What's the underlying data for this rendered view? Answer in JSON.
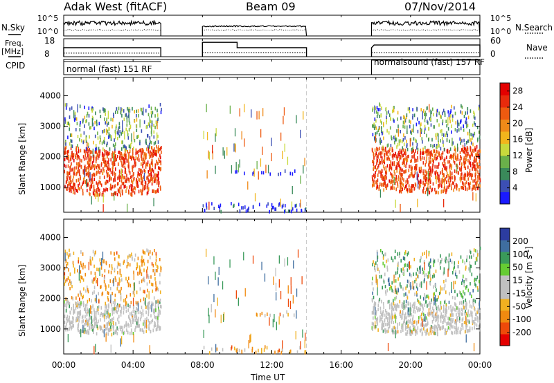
{
  "header": {
    "station": "Adak West (fitACF)",
    "beam": "Beam 09",
    "date": "07/Nov/2014"
  },
  "side_labels": {
    "nsky": "N.Sky",
    "nsky_ticks": [
      "10^5",
      "10^0"
    ],
    "nsearch": "N.Search",
    "nsearch_ticks": [
      "10^5",
      "10^0"
    ],
    "freq": "Freq.",
    "freq_unit": "[MHz]",
    "freq_ticks": [
      "18",
      "8"
    ],
    "nave": "Nave",
    "nave_ticks": [
      "60",
      "0"
    ],
    "cpid": "CPID"
  },
  "cpid_segments": [
    {
      "label": "normal (fast) 151 RF",
      "start_h": 0.0,
      "end_h": 5.6
    },
    {
      "label": "normalsound (fast) 157 RF",
      "start_h": 17.75,
      "end_h": 24.0
    }
  ],
  "operating_intervals_h": [
    [
      0.0,
      5.6
    ],
    [
      8.0,
      14.0
    ],
    [
      17.75,
      24.0
    ]
  ],
  "time_axis": {
    "label": "Time UT",
    "ticks": [
      "00:00",
      "04:00",
      "08:00",
      "12:00",
      "16:00",
      "20:00",
      "00:00"
    ],
    "range_h": [
      0,
      24
    ]
  },
  "range_axis": {
    "label": "Slant Range [km]",
    "ticks": [
      1000,
      2000,
      3000,
      4000
    ],
    "range_km": [
      180,
      4600
    ]
  },
  "power_scale": {
    "label": "Power [dB]",
    "ticks": [
      4,
      8,
      12,
      16,
      20,
      24,
      28
    ],
    "range": [
      0,
      30
    ],
    "colors": [
      "#1a1aff",
      "#3c4fb4",
      "#3a8a5a",
      "#6ab04a",
      "#c8d93c",
      "#f2b51c",
      "#f08a18",
      "#ee5a10",
      "#e82a0c",
      "#e40000"
    ]
  },
  "velocity_scale": {
    "label": "Velocity [m s^-1]",
    "ticks": [
      200,
      100,
      50,
      15,
      -15,
      -50,
      -100,
      -200
    ],
    "colors": [
      "#2c3ca0",
      "#3f6ea0",
      "#3a9a5a",
      "#66cc33",
      "#c0c0c0",
      "#c0c0c0",
      "#f0b020",
      "#f08a10",
      "#ee4a0a",
      "#e40000"
    ]
  },
  "chart_data": [
    {
      "type": "line",
      "title": "N.Sky / N.Search",
      "x_range_h": [
        0,
        24
      ],
      "series": [
        {
          "name": "N.Sky",
          "segments_h": [
            [
              0.0,
              5.6
            ],
            [
              8.0,
              14.0
            ],
            [
              17.75,
              24.0
            ]
          ],
          "level": "10^2 to 10^3"
        },
        {
          "name": "N.Search",
          "segments_h": [
            [
              0.0,
              5.6
            ],
            [
              8.0,
              14.0
            ],
            [
              17.75,
              24.0
            ]
          ],
          "level": "~10^1"
        }
      ]
    },
    {
      "type": "line",
      "title": "Freq. / Nave",
      "x_range_h": [
        0,
        24
      ],
      "series": [
        {
          "name": "Freq. [MHz]",
          "points": [
            [
              0.0,
              13
            ],
            [
              5.6,
              13
            ],
            [
              8.0,
              16
            ],
            [
              10.0,
              16
            ],
            [
              10.0,
              13
            ],
            [
              14.0,
              13
            ],
            [
              17.75,
              13
            ],
            [
              17.9,
              14.5
            ],
            [
              24.0,
              14.5
            ]
          ]
        },
        {
          "name": "Nave",
          "points": [
            [
              0.0,
              12
            ],
            [
              5.6,
              12
            ],
            [
              8.0,
              13
            ],
            [
              14.0,
              13
            ],
            [
              17.75,
              13
            ],
            [
              24.0,
              13
            ]
          ]
        }
      ]
    },
    {
      "type": "heatmap",
      "title": "Power [dB]",
      "xlabel": "Time UT",
      "ylabel": "Slant Range [km]",
      "x_range_h": [
        0,
        24
      ],
      "y_range_km": [
        180,
        4600
      ],
      "clim": [
        0,
        30
      ],
      "echo_regions": [
        {
          "start_h": 0.0,
          "end_h": 5.6,
          "range_km": [
            700,
            2200
          ],
          "power_db": 28
        },
        {
          "start_h": 0.0,
          "end_h": 5.6,
          "range_km": [
            2200,
            3600
          ],
          "power_db": 16
        },
        {
          "start_h": 9.8,
          "end_h": 12.0,
          "range_km": [
            1400,
            1500
          ],
          "power_db": 6
        },
        {
          "start_h": 12.3,
          "end_h": 13.4,
          "range_km": [
            1400,
            1550
          ],
          "power_db": 6
        },
        {
          "start_h": 8.0,
          "end_h": 14.0,
          "range_km": [
            180,
            450
          ],
          "power_db": 8
        },
        {
          "start_h": 17.75,
          "end_h": 24.0,
          "range_km": [
            800,
            2200
          ],
          "power_db": 28
        },
        {
          "start_h": 17.75,
          "end_h": 24.0,
          "range_km": [
            2200,
            3600
          ],
          "power_db": 16
        }
      ]
    },
    {
      "type": "heatmap",
      "title": "Velocity [m s^-1]",
      "xlabel": "Time UT",
      "ylabel": "Slant Range [km]",
      "x_range_h": [
        0,
        24
      ],
      "y_range_km": [
        180,
        4600
      ],
      "clim": [
        -200,
        200
      ],
      "echo_regions": [
        {
          "start_h": 0.0,
          "end_h": 5.6,
          "range_km": [
            800,
            1800
          ],
          "velocity": 0
        },
        {
          "start_h": 0.0,
          "end_h": 5.6,
          "range_km": [
            1800,
            3500
          ],
          "velocity": -50
        },
        {
          "start_h": 9.8,
          "end_h": 12.0,
          "range_km": [
            1400,
            1500
          ],
          "velocity": -50
        },
        {
          "start_h": 12.3,
          "end_h": 13.4,
          "range_km": [
            1400,
            1550
          ],
          "velocity": -50
        },
        {
          "start_h": 8.0,
          "end_h": 14.0,
          "range_km": [
            180,
            400
          ],
          "velocity": -50
        },
        {
          "start_h": 17.75,
          "end_h": 24.0,
          "range_km": [
            800,
            1800
          ],
          "velocity": 0
        },
        {
          "start_h": 17.75,
          "end_h": 24.0,
          "range_km": [
            1800,
            3500
          ],
          "velocity": 30
        }
      ]
    }
  ]
}
